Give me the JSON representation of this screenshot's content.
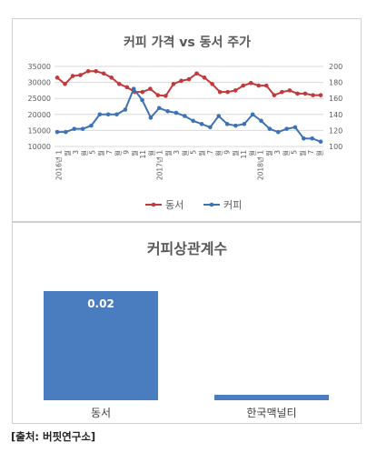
{
  "chart_data": [
    {
      "type": "line",
      "title": "커피 가격 vs 동서 주가",
      "x_tick_labels": [
        "2016년 1월",
        "3",
        "5",
        "7",
        "9",
        "11",
        "2017년 1월",
        "3",
        "5",
        "7",
        "9",
        "11",
        "2018년 1월",
        "3",
        "5",
        "7"
      ],
      "x_tick_labels_display": [
        "2016년 1",
        "월",
        "3",
        "월",
        "5",
        "월",
        "7",
        "월",
        "9",
        "월",
        "11",
        "월",
        "2017년 1",
        "월",
        "3",
        "월",
        "5",
        "월",
        "7",
        "월",
        "9",
        "월",
        "11",
        "월",
        "2018년 1",
        "월",
        "3",
        "월",
        "5",
        "월",
        "7",
        "월"
      ],
      "y_left": {
        "ticks": [
          10000,
          15000,
          20000,
          25000,
          30000,
          35000
        ],
        "ylim": [
          10000,
          35000
        ]
      },
      "y_right": {
        "ticks": [
          100,
          120,
          140,
          160,
          180,
          200
        ],
        "ylim": [
          100,
          200
        ]
      },
      "grid": true,
      "legend_position": "bottom",
      "series": [
        {
          "name": "동서",
          "axis": "left",
          "color": "#c0393b",
          "values": [
            31500,
            29500,
            32000,
            32300,
            33500,
            33500,
            32800,
            31500,
            29500,
            28500,
            27000,
            27000,
            28000,
            26000,
            25800,
            29500,
            30500,
            31000,
            32800,
            31500,
            29500,
            27000,
            27000,
            27500,
            29000,
            29800,
            29000,
            29000,
            26000,
            27000,
            27500,
            26500,
            26500,
            26000,
            26000
          ]
        },
        {
          "name": "커피",
          "axis": "right",
          "color": "#3d72b4",
          "values": [
            118,
            118,
            122,
            122,
            126,
            140,
            140,
            140,
            146,
            172,
            158,
            136,
            148,
            144,
            142,
            138,
            132,
            128,
            124,
            138,
            128,
            126,
            128,
            140,
            132,
            122,
            118,
            122,
            124,
            110,
            110,
            106
          ]
        }
      ]
    },
    {
      "type": "bar",
      "title": "커피상관계수",
      "categories": [
        "동서",
        "한국맥널티"
      ],
      "values": [
        0.02,
        0.001
      ],
      "value_labels": [
        "0.02",
        ""
      ],
      "color": "#4a7cc0"
    }
  ],
  "source": "[출처: 버핏연구소]"
}
